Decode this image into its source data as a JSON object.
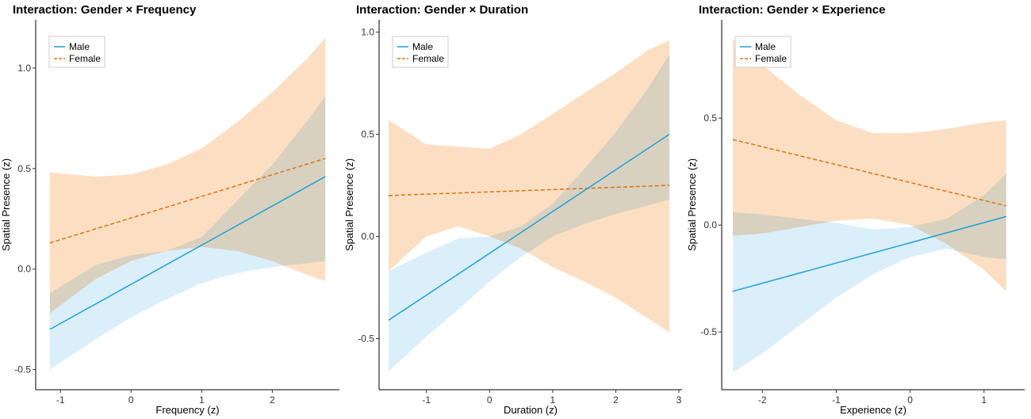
{
  "chart_data": [
    {
      "type": "line",
      "title": "Interaction: Gender × Frequency",
      "xlabel": "Frequency (z)",
      "ylabel": "Spatial Presence (z)",
      "xlim": [
        -1.35,
        2.95
      ],
      "ylim": [
        -0.6,
        1.24
      ],
      "xticks": [
        -1,
        0,
        1,
        2
      ],
      "xtick_labels": [
        "-1",
        "0",
        "1",
        "2"
      ],
      "yticks": [
        -0.5,
        0.0,
        0.5,
        1.0
      ],
      "ytick_labels": [
        "-0.5",
        "0.0",
        "0.5",
        "1.0"
      ],
      "grid": false,
      "legend": {
        "position": "top-left",
        "entries": [
          "Male",
          "Female"
        ]
      },
      "series": [
        {
          "name": "Male",
          "color": "#1f9fd8",
          "dash": "solid",
          "band_color": "#cfeaf9",
          "x": [
            -1.15,
            2.75
          ],
          "y": [
            -0.3,
            0.46
          ],
          "band_x": [
            -1.15,
            -0.5,
            0.0,
            0.5,
            1.0,
            1.5,
            2.0,
            2.5,
            2.75
          ],
          "band_lower": [
            -0.5,
            -0.35,
            -0.24,
            -0.15,
            -0.07,
            -0.02,
            0.01,
            0.03,
            0.04
          ],
          "band_upper": [
            -0.12,
            0.02,
            0.07,
            0.09,
            0.16,
            0.34,
            0.52,
            0.74,
            0.86
          ]
        },
        {
          "name": "Female",
          "color": "#e0720f",
          "dash": "dashed",
          "band_color": "#fcdcbd",
          "x": [
            -1.15,
            2.75
          ],
          "y": [
            0.13,
            0.55
          ],
          "band_x": [
            -1.15,
            -0.5,
            0.0,
            0.5,
            1.0,
            1.5,
            2.0,
            2.5,
            2.75
          ],
          "band_lower": [
            -0.22,
            -0.05,
            0.04,
            0.09,
            0.11,
            0.09,
            0.04,
            -0.03,
            -0.06
          ],
          "band_upper": [
            0.48,
            0.46,
            0.47,
            0.52,
            0.6,
            0.73,
            0.88,
            1.05,
            1.15
          ]
        }
      ]
    },
    {
      "type": "line",
      "title": "Interaction: Gender × Duration",
      "xlabel": "Duration (z)",
      "ylabel": "Spatial Presence (z)",
      "xlim": [
        -1.75,
        3.05
      ],
      "ylim": [
        -0.75,
        1.06
      ],
      "xticks": [
        -1,
        0,
        1,
        2,
        3
      ],
      "xtick_labels": [
        "-1",
        "0",
        "1",
        "2",
        "3"
      ],
      "yticks": [
        -0.5,
        0.0,
        0.5,
        1.0
      ],
      "ytick_labels": [
        "-0.5",
        "0.0",
        "0.5",
        "1.0"
      ],
      "grid": false,
      "legend": {
        "position": "top-left",
        "entries": [
          "Male",
          "Female"
        ]
      },
      "series": [
        {
          "name": "Male",
          "color": "#1f9fd8",
          "dash": "solid",
          "band_color": "#cfeaf9",
          "x": [
            -1.6,
            2.85
          ],
          "y": [
            -0.41,
            0.5
          ],
          "band_x": [
            -1.6,
            -1.0,
            -0.5,
            0.0,
            0.5,
            1.0,
            1.5,
            2.0,
            2.5,
            2.85
          ],
          "band_lower": [
            -0.66,
            -0.49,
            -0.36,
            -0.22,
            -0.1,
            0.0,
            0.06,
            0.11,
            0.15,
            0.18
          ],
          "band_upper": [
            -0.17,
            -0.08,
            -0.01,
            0.0,
            0.05,
            0.16,
            0.33,
            0.51,
            0.72,
            0.89
          ]
        },
        {
          "name": "Female",
          "color": "#e0720f",
          "dash": "dashed",
          "band_color": "#fcdcbd",
          "x": [
            -1.6,
            2.85
          ],
          "y": [
            0.2,
            0.25
          ],
          "band_x": [
            -1.6,
            -1.0,
            -0.5,
            0.0,
            0.5,
            1.0,
            1.5,
            2.0,
            2.5,
            2.85
          ],
          "band_lower": [
            -0.17,
            0.0,
            0.05,
            0.0,
            -0.06,
            -0.15,
            -0.22,
            -0.3,
            -0.4,
            -0.47
          ],
          "band_upper": [
            0.57,
            0.45,
            0.44,
            0.43,
            0.5,
            0.6,
            0.7,
            0.8,
            0.91,
            0.96
          ]
        }
      ]
    },
    {
      "type": "line",
      "title": "Interaction: Gender × Experience",
      "xlabel": "Experience (z)",
      "ylabel": "Spatial Presence (z)",
      "xlim": [
        -2.55,
        1.55
      ],
      "ylim": [
        -0.77,
        0.96
      ],
      "xticks": [
        -2,
        -1,
        0,
        1
      ],
      "xtick_labels": [
        "-2",
        "-1",
        "0",
        "1"
      ],
      "yticks": [
        -0.5,
        0.0,
        0.5
      ],
      "ytick_labels": [
        "-0.5",
        "0.0",
        "0.5"
      ],
      "grid": false,
      "legend": {
        "position": "top-left",
        "entries": [
          "Male",
          "Female"
        ]
      },
      "series": [
        {
          "name": "Male",
          "color": "#1f9fd8",
          "dash": "solid",
          "band_color": "#cfeaf9",
          "x": [
            -2.4,
            1.3
          ],
          "y": [
            -0.31,
            0.04
          ],
          "band_x": [
            -2.4,
            -2.0,
            -1.5,
            -1.0,
            -0.5,
            0.0,
            0.5,
            1.0,
            1.3
          ],
          "band_lower": [
            -0.69,
            -0.6,
            -0.47,
            -0.34,
            -0.23,
            -0.15,
            -0.11,
            -0.15,
            -0.16
          ],
          "band_upper": [
            0.06,
            0.05,
            0.03,
            0.01,
            -0.02,
            -0.01,
            0.03,
            0.14,
            0.24
          ]
        },
        {
          "name": "Female",
          "color": "#e0720f",
          "dash": "dashed",
          "band_color": "#fcdcbd",
          "x": [
            -2.4,
            1.3
          ],
          "y": [
            0.4,
            0.09
          ],
          "band_x": [
            -2.4,
            -2.0,
            -1.5,
            -1.0,
            -0.5,
            0.0,
            0.5,
            1.0,
            1.3
          ],
          "band_lower": [
            -0.05,
            -0.04,
            -0.01,
            0.02,
            0.03,
            0.0,
            -0.09,
            -0.21,
            -0.31
          ],
          "band_upper": [
            0.87,
            0.75,
            0.61,
            0.49,
            0.43,
            0.43,
            0.45,
            0.48,
            0.49
          ]
        }
      ]
    }
  ]
}
